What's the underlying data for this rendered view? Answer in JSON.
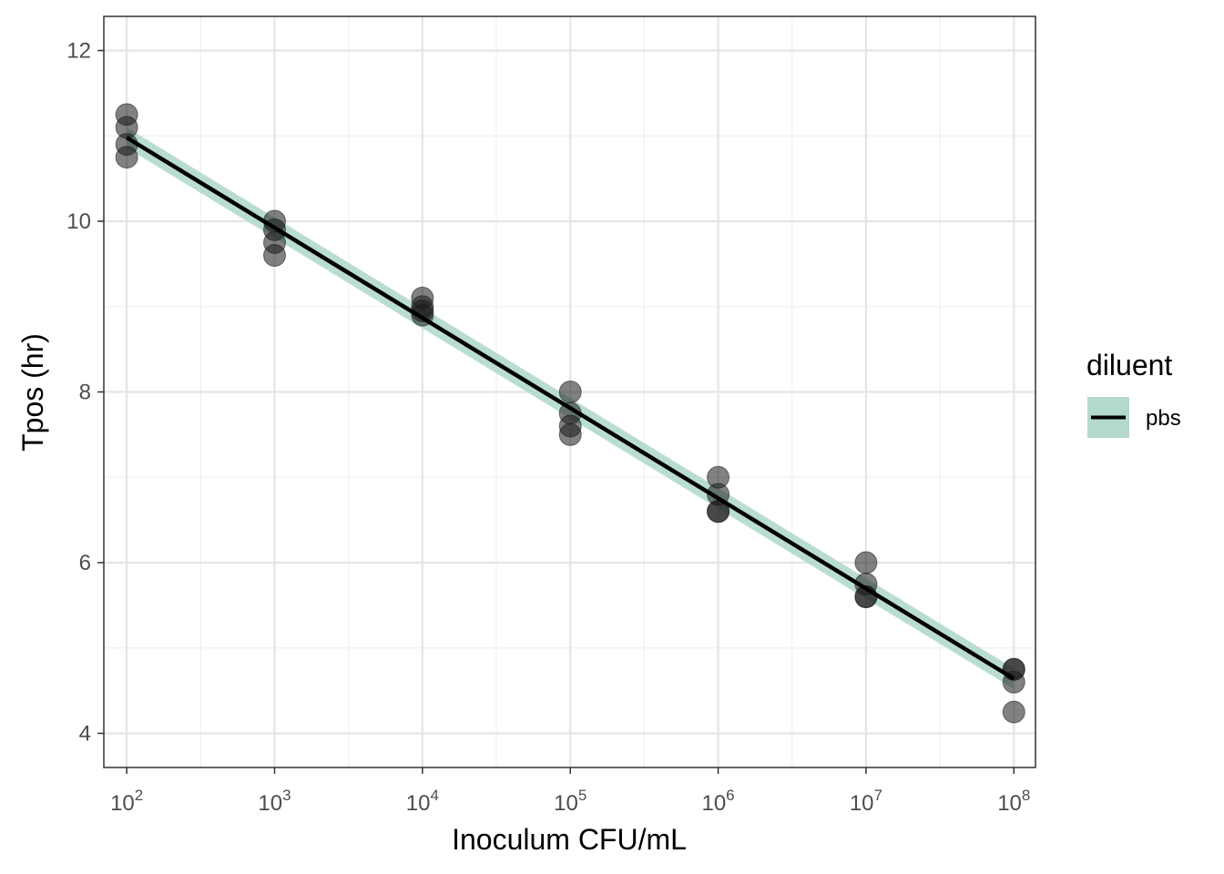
{
  "chart_data": {
    "type": "scatter",
    "title": "",
    "xlabel": "Inoculum CFU/mL",
    "ylabel": "Tpos (hr)",
    "x_scale": "log10",
    "xlim": [
      70,
      140000000
    ],
    "ylim": [
      3.6,
      12.4
    ],
    "x_ticks": [
      {
        "value": 100,
        "base": "10",
        "exp": "2"
      },
      {
        "value": 1000,
        "base": "10",
        "exp": "3"
      },
      {
        "value": 10000,
        "base": "10",
        "exp": "4"
      },
      {
        "value": 100000,
        "base": "10",
        "exp": "5"
      },
      {
        "value": 1000000,
        "base": "10",
        "exp": "6"
      },
      {
        "value": 10000000,
        "base": "10",
        "exp": "7"
      },
      {
        "value": 100000000,
        "base": "10",
        "exp": "8"
      }
    ],
    "y_ticks": [
      4,
      6,
      8,
      10,
      12
    ],
    "grid": true,
    "points": [
      {
        "x": 100,
        "y": 11.25
      },
      {
        "x": 100,
        "y": 11.1
      },
      {
        "x": 100,
        "y": 10.9
      },
      {
        "x": 100,
        "y": 10.75
      },
      {
        "x": 1000,
        "y": 10.0
      },
      {
        "x": 1000,
        "y": 9.9
      },
      {
        "x": 1000,
        "y": 9.75
      },
      {
        "x": 1000,
        "y": 9.6
      },
      {
        "x": 10000,
        "y": 9.1
      },
      {
        "x": 10000,
        "y": 9.0
      },
      {
        "x": 10000,
        "y": 8.95
      },
      {
        "x": 10000,
        "y": 8.9
      },
      {
        "x": 100000,
        "y": 8.0
      },
      {
        "x": 100000,
        "y": 7.75
      },
      {
        "x": 100000,
        "y": 7.6
      },
      {
        "x": 100000,
        "y": 7.5
      },
      {
        "x": 1000000,
        "y": 7.0
      },
      {
        "x": 1000000,
        "y": 6.8
      },
      {
        "x": 1000000,
        "y": 6.6
      },
      {
        "x": 1000000,
        "y": 6.6
      },
      {
        "x": 10000000,
        "y": 6.0
      },
      {
        "x": 10000000,
        "y": 5.75
      },
      {
        "x": 10000000,
        "y": 5.6
      },
      {
        "x": 10000000,
        "y": 5.6
      },
      {
        "x": 100000000,
        "y": 4.75
      },
      {
        "x": 100000000,
        "y": 4.75
      },
      {
        "x": 100000000,
        "y": 4.6
      },
      {
        "x": 100000000,
        "y": 4.25
      }
    ],
    "fit": {
      "series": "pbs",
      "x": [
        100,
        100000000
      ],
      "y": [
        10.98,
        4.64
      ],
      "ci_halfwidth": [
        0.12,
        0.12
      ]
    },
    "legend": {
      "title": "diluent",
      "placement": "right",
      "entries": [
        {
          "label": "pbs",
          "line_color": "#000000",
          "fill_color": "#b3d9cc"
        }
      ]
    },
    "colors": {
      "point": "#1a1a1a",
      "line": "#000000",
      "ribbon": "#b3d9cc",
      "grid_major": "#e5e5e5",
      "grid_minor": "#f0f0f0",
      "panel_border": "#333333"
    }
  }
}
